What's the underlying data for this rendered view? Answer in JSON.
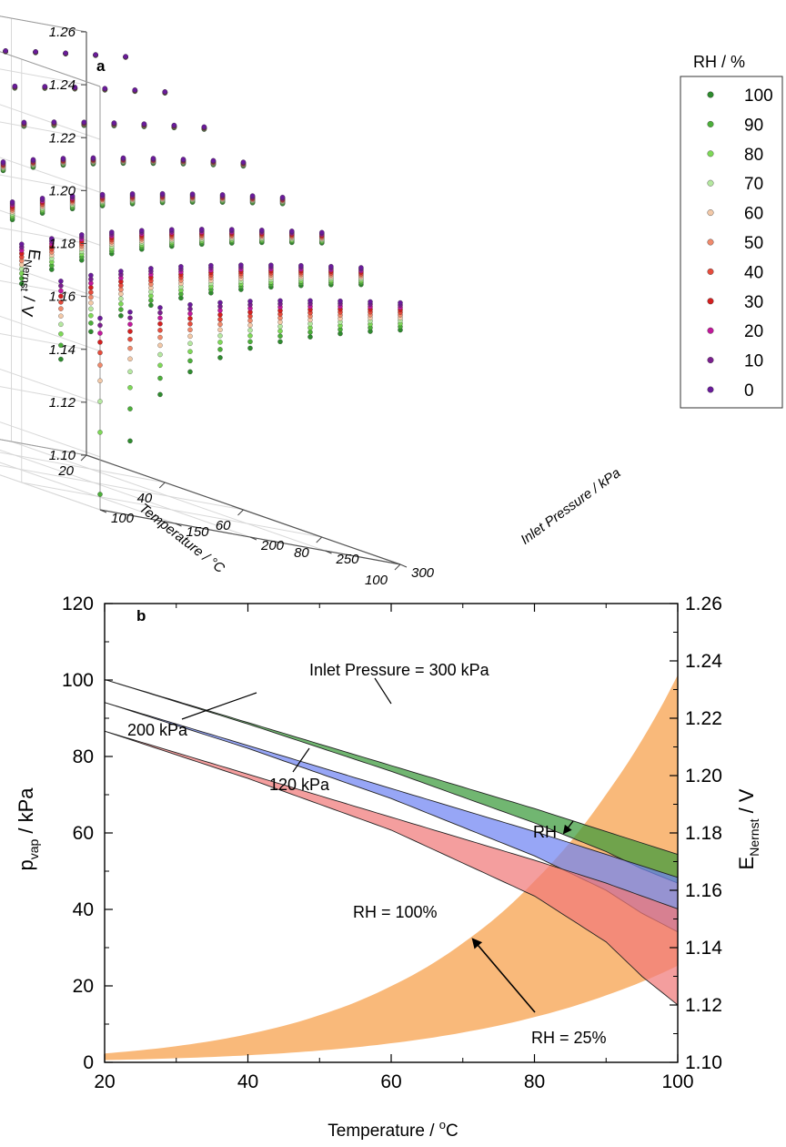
{
  "chart_data": [
    {
      "panel": "a",
      "type": "scatter",
      "projection": "3d",
      "x": {
        "label": "Temperature / °C",
        "ticks": [
          "20",
          "40",
          "60",
          "80",
          "100"
        ],
        "range": [
          20,
          100
        ]
      },
      "y": {
        "label": "Inlet Pressure / kPa",
        "ticks": [
          "100",
          "150",
          "200",
          "250",
          "300"
        ],
        "range": [
          100,
          300
        ]
      },
      "z": {
        "label": "E",
        "label_sub": "Nernst",
        "label_unit": " / V",
        "ticks": [
          "1.10",
          "1.12",
          "1.14",
          "1.16",
          "1.18",
          "1.20",
          "1.22",
          "1.24",
          "1.26"
        ],
        "range": [
          1.1,
          1.26
        ]
      },
      "temperatures": [
        20,
        30,
        40,
        50,
        60,
        70,
        80,
        90,
        100
      ],
      "pressures": [
        100,
        120,
        140,
        160,
        180,
        200,
        220,
        240,
        260,
        280,
        300
      ],
      "legend": {
        "title": "RH / %",
        "position": "right",
        "entries": [
          {
            "label": "100",
            "rh": 100,
            "color": "#2e8b2e"
          },
          {
            "label": "90",
            "rh": 90,
            "color": "#4caf3a"
          },
          {
            "label": "80",
            "rh": 80,
            "color": "#7ed957"
          },
          {
            "label": "70",
            "rh": 70,
            "color": "#b5e8a0"
          },
          {
            "label": "60",
            "rh": 60,
            "color": "#f3c9a8"
          },
          {
            "label": "50",
            "rh": 50,
            "color": "#f08a6c"
          },
          {
            "label": "40",
            "rh": 40,
            "color": "#e64c3c"
          },
          {
            "label": "30",
            "rh": 30,
            "color": "#d41f1f"
          },
          {
            "label": "20",
            "rh": 20,
            "color": "#c2189b"
          },
          {
            "label": "10",
            "rh": 10,
            "color": "#7b1f8f"
          },
          {
            "label": "0",
            "rh": 0,
            "color": "#6a1b9a"
          }
        ]
      },
      "grid": true
    },
    {
      "panel": "b",
      "type": "area",
      "x": {
        "label": "Temperature / ",
        "label_sup": "o",
        "label_unit": "C",
        "range": [
          20,
          100
        ],
        "ticks": [
          "20",
          "40",
          "60",
          "80",
          "100"
        ]
      },
      "y_left": {
        "label": "p",
        "label_sub": "vap",
        "label_unit": " / kPa",
        "range": [
          0,
          120
        ],
        "ticks": [
          "0",
          "20",
          "40",
          "60",
          "80",
          "100",
          "120"
        ]
      },
      "y_right": {
        "label": "E",
        "label_sub": "Nernst",
        "label_unit": " / V",
        "range": [
          1.1,
          1.26
        ],
        "ticks": [
          "1.10",
          "1.12",
          "1.14",
          "1.16",
          "1.18",
          "1.20",
          "1.22",
          "1.24",
          "1.26"
        ]
      },
      "vapor_pressure": {
        "axis": "left",
        "color": "#f9b97a",
        "x": [
          20,
          30,
          40,
          50,
          60,
          70,
          80,
          90,
          100
        ],
        "rh100": [
          2.34,
          4.25,
          7.38,
          12.35,
          19.95,
          31.2,
          47.4,
          70.1,
          101.3
        ],
        "rh25": [
          0.59,
          1.06,
          1.85,
          3.09,
          4.99,
          7.8,
          11.85,
          17.53,
          25.3
        ]
      },
      "nernst_bands": {
        "axis": "right",
        "x": [
          20,
          40,
          60,
          80,
          90,
          95,
          100
        ],
        "bands": [
          {
            "inlet_kpa": 300,
            "color": "#3a9a3a",
            "upper": [
              1.2335,
              1.2185,
              1.2035,
              1.1885,
              1.1805,
              1.1765,
              1.1725
            ],
            "lower": [
              1.2335,
              1.218,
              1.2015,
              1.1835,
              1.1735,
              1.1675,
              1.1625
            ]
          },
          {
            "inlet_kpa": 200,
            "color": "#6f84f2",
            "upper": [
              1.2255,
              1.2105,
              1.1955,
              1.1805,
              1.1725,
              1.1685,
              1.1645
            ],
            "lower": [
              1.2255,
              1.2095,
              1.192,
              1.172,
              1.16,
              1.152,
              1.1455
            ]
          },
          {
            "inlet_kpa": 120,
            "color": "#f07878",
            "upper": [
              1.2155,
              1.2005,
              1.1855,
              1.1705,
              1.1625,
              1.158,
              1.1535
            ],
            "lower": [
              1.2155,
              1.199,
              1.181,
              1.158,
              1.142,
              1.13,
              1.12
            ]
          }
        ]
      },
      "annotations": [
        {
          "text": "Inlet Pressure = 300 kPa"
        },
        {
          "text": "200 kPa"
        },
        {
          "text": "120 kPa"
        },
        {
          "text": "RH"
        },
        {
          "text": "RH = 100%"
        },
        {
          "text": "RH = 25%"
        }
      ]
    }
  ]
}
